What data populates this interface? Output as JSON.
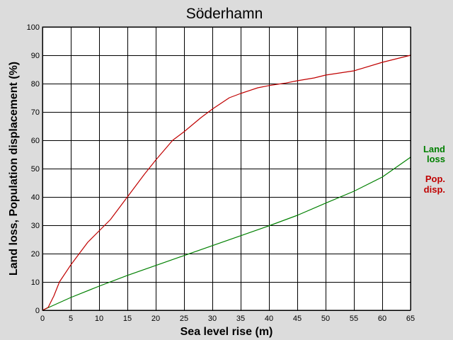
{
  "chart_data": {
    "type": "line",
    "title": "Söderhamn",
    "xlabel": "Sea level rise (m)",
    "ylabel": "Land loss, Population displacement (%)",
    "xlim": [
      0,
      65
    ],
    "ylim": [
      0,
      100
    ],
    "xticks": [
      0,
      5,
      10,
      15,
      20,
      25,
      30,
      35,
      40,
      45,
      50,
      55,
      60,
      65
    ],
    "yticks": [
      0,
      10,
      20,
      30,
      40,
      50,
      60,
      70,
      80,
      90,
      100
    ],
    "grid": true,
    "background_color": "#dcdcdc",
    "plot_background_color": "#ffffff",
    "legend_position": "right",
    "series": [
      {
        "name": "Land loss",
        "legend_lines": [
          "Land",
          "loss"
        ],
        "color": "#008000",
        "x": [
          0,
          5,
          10,
          15,
          20,
          25,
          30,
          35,
          40,
          45,
          50,
          55,
          60,
          65
        ],
        "y": [
          0,
          4.5,
          8.5,
          12.3,
          15.8,
          19.3,
          22.8,
          26.3,
          29.8,
          33.5,
          37.8,
          42,
          47,
          54
        ]
      },
      {
        "name": "Pop. disp.",
        "legend_lines": [
          "Pop.",
          "disp."
        ],
        "color": "#c00000",
        "x": [
          0,
          1,
          2,
          3,
          5,
          8,
          10,
          12,
          15,
          18,
          20,
          23,
          25,
          28,
          30,
          33,
          35,
          38,
          40,
          43,
          45,
          48,
          50,
          55,
          60,
          65
        ],
        "y": [
          0,
          1,
          5,
          10,
          16,
          24,
          28,
          32,
          40,
          48,
          53,
          60,
          63,
          68,
          71,
          75,
          76.5,
          78.5,
          79.3,
          80.2,
          81,
          82,
          83,
          84.5,
          87.5,
          90
        ]
      }
    ]
  }
}
